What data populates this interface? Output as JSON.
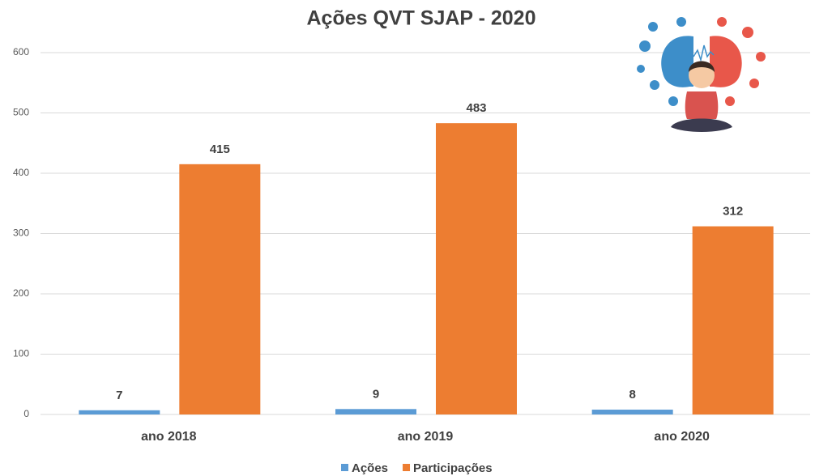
{
  "chart_data": {
    "type": "bar",
    "title": "Ações QVT SJAP - 2020",
    "categories": [
      "ano 2018",
      "ano 2019",
      "ano 2020"
    ],
    "series": [
      {
        "name": "Ações",
        "color": "#5b9bd5",
        "values": [
          7,
          9,
          8
        ]
      },
      {
        "name": "Participações",
        "color": "#ed7d31",
        "values": [
          415,
          483,
          312
        ]
      }
    ],
    "ylim": [
      0,
      600
    ],
    "yticks": [
      0,
      100,
      200,
      300,
      400,
      500,
      600
    ],
    "grid": true,
    "legend": "bottom"
  }
}
